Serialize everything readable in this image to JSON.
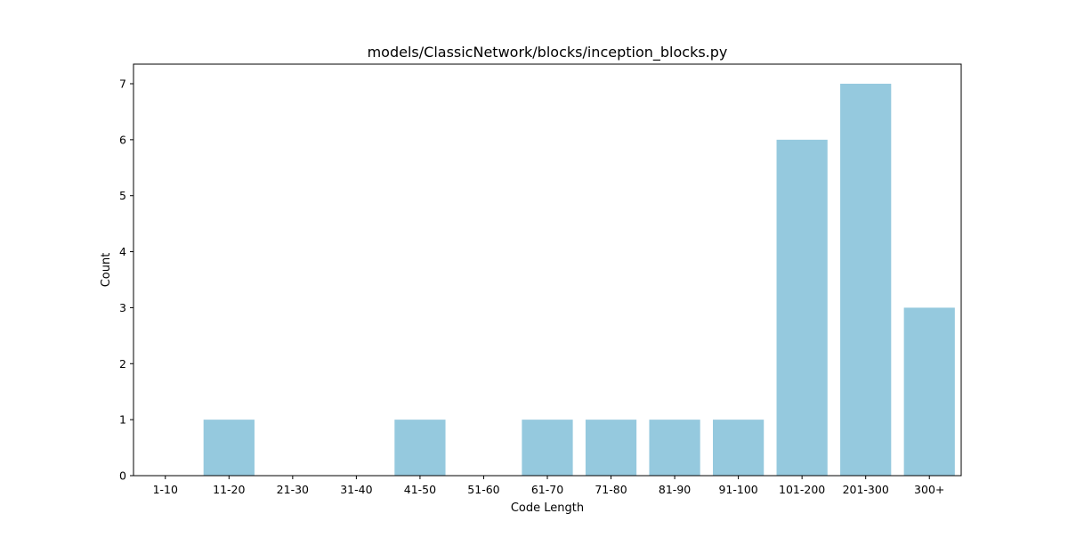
{
  "chart_data": {
    "type": "bar",
    "title": "models/ClassicNetwork/blocks/inception_blocks.py",
    "xlabel": "Code Length",
    "ylabel": "Count",
    "categories": [
      "1-10",
      "11-20",
      "21-30",
      "31-40",
      "41-50",
      "51-60",
      "61-70",
      "71-80",
      "81-90",
      "91-100",
      "101-200",
      "201-300",
      "300+"
    ],
    "values": [
      0,
      1,
      0,
      0,
      1,
      0,
      1,
      1,
      1,
      1,
      6,
      7,
      3
    ],
    "ylim": [
      0,
      7.35
    ],
    "yticks": [
      0,
      1,
      2,
      3,
      4,
      5,
      6,
      7
    ],
    "grid": false,
    "legend": "none",
    "bar_color": "#95c9de"
  }
}
